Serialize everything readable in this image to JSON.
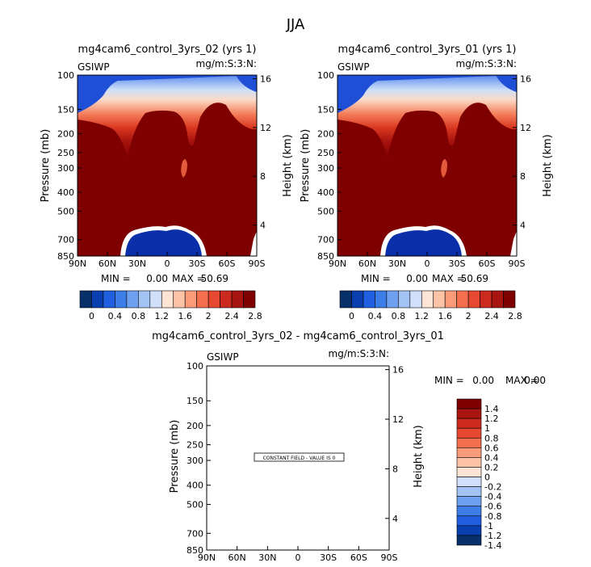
{
  "figure_title": "JJA",
  "chart_data": [
    {
      "type": "heatmap",
      "title": "mg4cam6_control_3yrs_02 (yrs 1)",
      "left_label": "GSIWP",
      "right_label": "mg/m:S:3:N:",
      "ylabel": "Pressure (mb)",
      "y2label": "Height (km)",
      "x_ticks": [
        "90N",
        "60N",
        "30N",
        "0",
        "30S",
        "60S",
        "90S"
      ],
      "y_ticks": [
        "100",
        "150",
        "200",
        "250",
        "300",
        "400",
        "500",
        "700",
        "850"
      ],
      "y2_ticks": [
        "16",
        "12",
        "8",
        "4"
      ],
      "stats": {
        "min_label": "MIN =",
        "min": "0.00",
        "max_label": "MAX =",
        "max": "50.69"
      },
      "colorbar_labels": [
        "0",
        "0.4",
        "0.8",
        "1.2",
        "1.6",
        "2",
        "2.4",
        "2.8"
      ]
    },
    {
      "type": "heatmap",
      "title": "mg4cam6_control_3yrs_01 (yrs 1)",
      "left_label": "GSIWP",
      "right_label": "mg/m:S:3:N:",
      "ylabel": "Pressure (mb)",
      "y2label": "Height (km)",
      "x_ticks": [
        "90N",
        "60N",
        "30N",
        "0",
        "30S",
        "60S",
        "90S"
      ],
      "y_ticks": [
        "100",
        "150",
        "200",
        "250",
        "300",
        "400",
        "500",
        "700",
        "850"
      ],
      "y2_ticks": [
        "16",
        "12",
        "8",
        "4"
      ],
      "stats": {
        "min_label": "MIN =",
        "min": "0.00",
        "max_label": "MAX =",
        "max": "50.69"
      },
      "colorbar_labels": [
        "0",
        "0.4",
        "0.8",
        "1.2",
        "1.6",
        "2",
        "2.4",
        "2.8"
      ]
    },
    {
      "type": "heatmap",
      "title": "mg4cam6_control_3yrs_02 - mg4cam6_control_3yrs_01",
      "left_label": "GSIWP",
      "right_label": "mg/m:S:3:N:",
      "ylabel": "Pressure (mb)",
      "y2label": "Height (km)",
      "x_ticks": [
        "90N",
        "60N",
        "30N",
        "0",
        "30S",
        "60S",
        "90S"
      ],
      "y_ticks": [
        "100",
        "150",
        "200",
        "250",
        "300",
        "400",
        "500",
        "700",
        "850"
      ],
      "y2_ticks": [
        "16",
        "12",
        "8",
        "4"
      ],
      "stats": {
        "min_label": "MIN =",
        "min": "0.00",
        "max_label": "MAX =",
        "max": "0.00"
      },
      "annotation": "CONSTANT FIELD - VALUE IS 0",
      "colorbar_labels": [
        "1.4",
        "1.2",
        "1",
        "0.8",
        "0.6",
        "0.4",
        "0.2",
        "0",
        "-0.2",
        "-0.4",
        "-0.6",
        "-0.8",
        "-1",
        "-1.2",
        "-1.4"
      ]
    }
  ],
  "colors": {
    "abs_scale": [
      "#08306b",
      "#0a3fb0",
      "#1f5fe0",
      "#3d7de8",
      "#6fa0ef",
      "#a3c3f5",
      "#d0e0fb",
      "#fde4d4",
      "#fcc3a7",
      "#fb9b7a",
      "#f56f4f",
      "#e64832",
      "#cc2a1f",
      "#a8140f",
      "#7f0000"
    ],
    "diff_scale": [
      "#7f0000",
      "#a8140f",
      "#cc2a1f",
      "#e64832",
      "#f56f4f",
      "#fb9b7a",
      "#fcc3a7",
      "#fde4d4",
      "#d0e0fb",
      "#a3c3f5",
      "#6fa0ef",
      "#3d7de8",
      "#1f5fe0",
      "#0a3fb0",
      "#08306b"
    ],
    "bulk": "#7f0000"
  }
}
